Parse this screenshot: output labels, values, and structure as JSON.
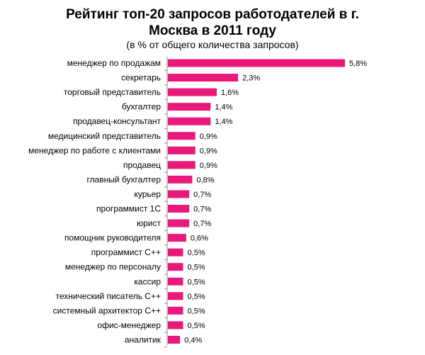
{
  "chart_data": {
    "type": "bar",
    "orientation": "horizontal",
    "title_line1": "Рейтинг топ-20 запросов работодателей в г.",
    "title_line2": "Москва в 2011 году",
    "subtitle": "(в % от общего количества запросов)",
    "categories": [
      "менеджер по продажам",
      "секретарь",
      "торговый представитель",
      "бухгалтер",
      "продавец-консультант",
      "медицинский представитель",
      "менеджер по работе с клиентами",
      "продавец",
      "главный бухгалтер",
      "курьер",
      "программист  1С",
      "юрист",
      "помощник  руководителя",
      "программист  С++",
      "менеджер по персоналу",
      "кассир",
      "технический писатель  С++",
      "системный  архитектор  С++",
      "офис-менеджер",
      "аналитик"
    ],
    "values": [
      5.8,
      2.3,
      1.6,
      1.4,
      1.4,
      0.9,
      0.9,
      0.9,
      0.8,
      0.7,
      0.7,
      0.7,
      0.6,
      0.5,
      0.5,
      0.5,
      0.5,
      0.5,
      0.5,
      0.4
    ],
    "value_labels": [
      "5,8%",
      "2,3%",
      "1,6%",
      "1,4%",
      "1,4%",
      "0,9%",
      "0,9%",
      "0,9%",
      "0,8%",
      "0,7%",
      "0,7%",
      "0,7%",
      "0,6%",
      "0,5%",
      "0,5%",
      "0,5%",
      "0,5%",
      "0,5%",
      "0,5%",
      "0,4%"
    ],
    "bar_color": "#e8197a",
    "axis_color": "#8c8c8c",
    "grid": false,
    "legend": "none"
  }
}
